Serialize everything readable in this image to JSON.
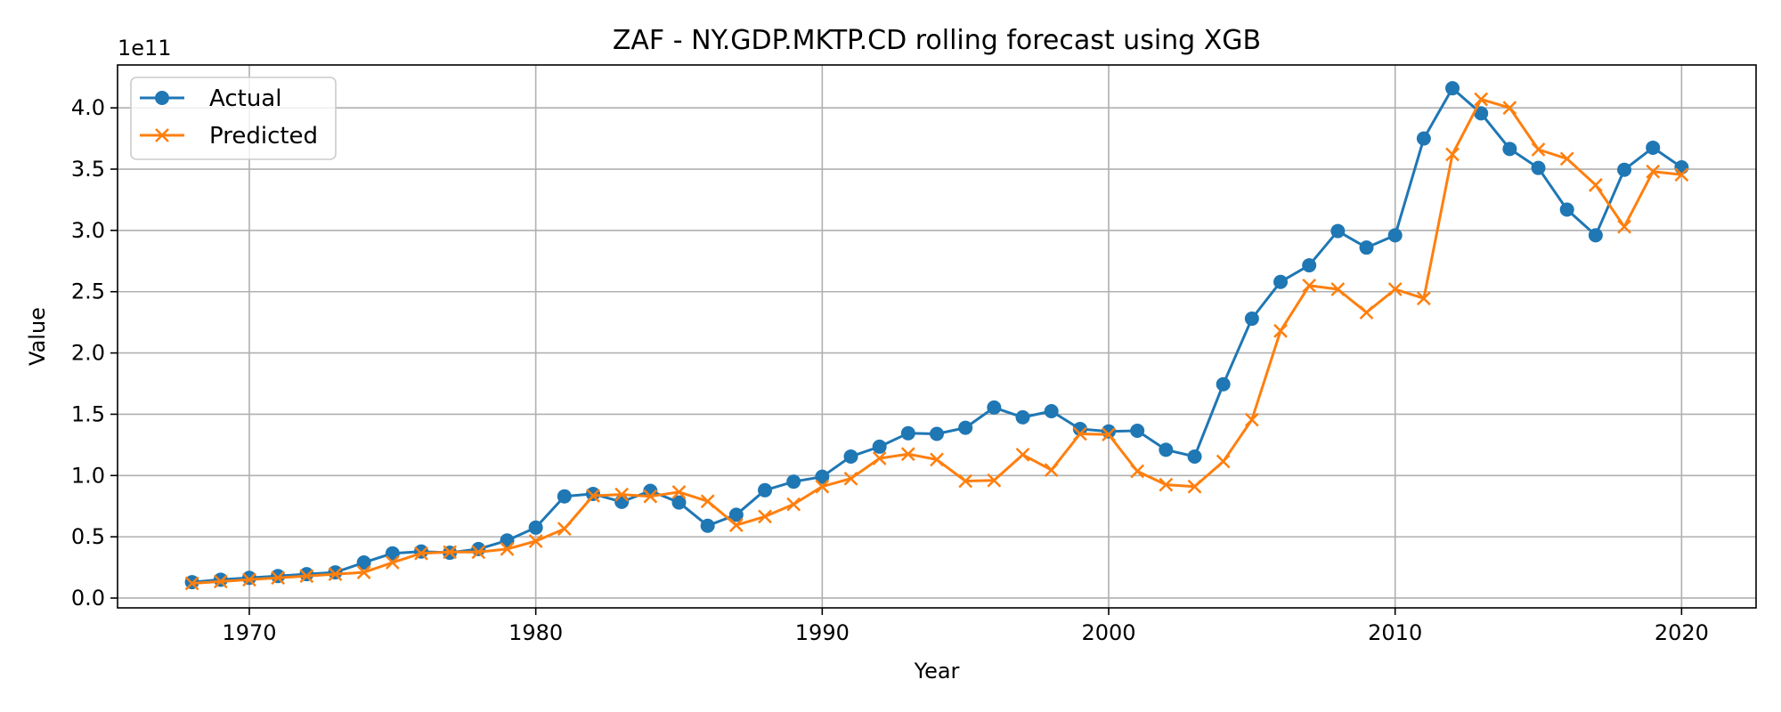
{
  "chart_data": {
    "type": "line",
    "title": "ZAF - NY.GDP.MKTP.CD rolling forecast using XGB",
    "xlabel": "Year",
    "ylabel": "Value",
    "y_scale_note": "1e11",
    "xlim": [
      1965.4,
      2022.6
    ],
    "ylim": [
      -0.08,
      4.35
    ],
    "xticks": [
      1970,
      1980,
      1990,
      2000,
      2010,
      2020
    ],
    "yticks": [
      0.0,
      0.5,
      1.0,
      1.5,
      2.0,
      2.5,
      3.0,
      3.5,
      4.0
    ],
    "xtick_labels": [
      "1970",
      "1980",
      "1990",
      "2000",
      "2010",
      "2020"
    ],
    "ytick_labels": [
      "0.0",
      "0.5",
      "1.0",
      "1.5",
      "2.0",
      "2.5",
      "3.0",
      "3.5",
      "4.0"
    ],
    "grid": true,
    "legend_position": "upper-left",
    "x": [
      1968,
      1969,
      1970,
      1971,
      1972,
      1973,
      1974,
      1975,
      1976,
      1977,
      1978,
      1979,
      1980,
      1981,
      1982,
      1983,
      1984,
      1985,
      1986,
      1987,
      1988,
      1989,
      1990,
      1991,
      1992,
      1993,
      1994,
      1995,
      1996,
      1997,
      1998,
      1999,
      2000,
      2001,
      2002,
      2003,
      2004,
      2005,
      2006,
      2007,
      2008,
      2009,
      2010,
      2011,
      2012,
      2013,
      2014,
      2015,
      2016,
      2017,
      2018,
      2019,
      2020
    ],
    "series": [
      {
        "name": "Actual",
        "color": "#1f77b4",
        "marker": "circle",
        "values": [
          0.13,
          0.15,
          0.165,
          0.18,
          0.195,
          0.21,
          0.29,
          0.365,
          0.38,
          0.37,
          0.4,
          0.47,
          0.575,
          0.83,
          0.85,
          0.785,
          0.875,
          0.78,
          0.59,
          0.68,
          0.88,
          0.95,
          0.99,
          1.155,
          1.235,
          1.345,
          1.34,
          1.39,
          1.555,
          1.475,
          1.525,
          1.38,
          1.36,
          1.365,
          1.21,
          1.155,
          1.745,
          2.28,
          2.58,
          2.715,
          2.995,
          2.86,
          2.96,
          3.75,
          4.16,
          3.955,
          3.665,
          3.51,
          3.17,
          2.96,
          3.495,
          3.675,
          3.515
        ]
      },
      {
        "name": "Predicted",
        "color": "#ff7f0e",
        "marker": "x",
        "values": [
          0.12,
          0.135,
          0.15,
          0.165,
          0.18,
          0.195,
          0.21,
          0.29,
          0.365,
          0.375,
          0.375,
          0.4,
          0.465,
          0.565,
          0.835,
          0.845,
          0.83,
          0.865,
          0.79,
          0.595,
          0.665,
          0.765,
          0.91,
          0.975,
          1.14,
          1.175,
          1.13,
          0.955,
          0.96,
          1.17,
          1.045,
          1.34,
          1.335,
          1.035,
          0.925,
          0.91,
          1.115,
          1.455,
          2.18,
          2.55,
          2.52,
          2.33,
          2.52,
          2.445,
          3.62,
          4.07,
          4.0,
          3.66,
          3.585,
          3.37,
          3.03,
          3.48,
          3.455
        ]
      }
    ]
  }
}
